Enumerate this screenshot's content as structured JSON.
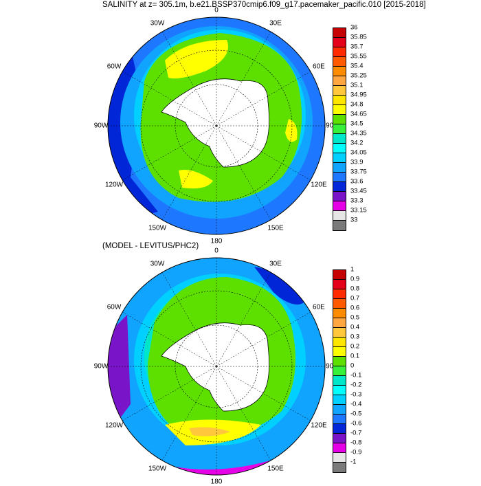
{
  "titles": {
    "top": "SALINITY at z= 305.1m, b.e21.BSSP370cmip6.f09_g17.pacemaker_pacific.010 [2015-2018]",
    "bottom": "(MODEL - LEVITUS/PHC2)"
  },
  "longitude_labels": [
    "0",
    "30E",
    "60E",
    "90E",
    "120E",
    "150E",
    "180",
    "150W",
    "120W",
    "90W",
    "60W",
    "30W"
  ],
  "colorbar_top": {
    "labels": [
      "36",
      "35.85",
      "35.7",
      "35.55",
      "35.4",
      "35.25",
      "35.1",
      "34.95",
      "34.8",
      "34.65",
      "34.5",
      "34.35",
      "34.2",
      "34.05",
      "33.9",
      "33.75",
      "33.6",
      "33.45",
      "33.3",
      "33.15",
      "33"
    ],
    "colors": [
      "#c40000",
      "#e4001a",
      "#ff2a00",
      "#ff5a00",
      "#ff8c00",
      "#ffa640",
      "#ffc83c",
      "#ffe600",
      "#ffff00",
      "#5de000",
      "#36f03a",
      "#00e6c8",
      "#00ffff",
      "#00d0ff",
      "#10a4ff",
      "#1e78ff",
      "#0026d8",
      "#7a14c8",
      "#e600e6",
      "#e6e6e6",
      "#7a7a7a"
    ]
  },
  "colorbar_bottom": {
    "labels": [
      "1",
      "0.9",
      "0.8",
      "0.7",
      "0.6",
      "0.5",
      "0.4",
      "0.3",
      "0.2",
      "0.1",
      "0",
      "-0.1",
      "-0.2",
      "-0.3",
      "-0.4",
      "-0.5",
      "-0.6",
      "-0.7",
      "-0.8",
      "-0.9",
      "-1"
    ],
    "colors": [
      "#c40000",
      "#e4001a",
      "#ff2a00",
      "#ff5a00",
      "#ff8c00",
      "#ffa640",
      "#ffc83c",
      "#ffe600",
      "#ffff00",
      "#5de000",
      "#36f03a",
      "#00e6c8",
      "#00ffff",
      "#00d0ff",
      "#10a4ff",
      "#1e78ff",
      "#0026d8",
      "#7a14c8",
      "#e600e6",
      "#e6e6e6",
      "#7a7a7a"
    ]
  },
  "palette": {
    "land": "#ffffff",
    "coast": "#000000",
    "grid": "#000000"
  }
}
